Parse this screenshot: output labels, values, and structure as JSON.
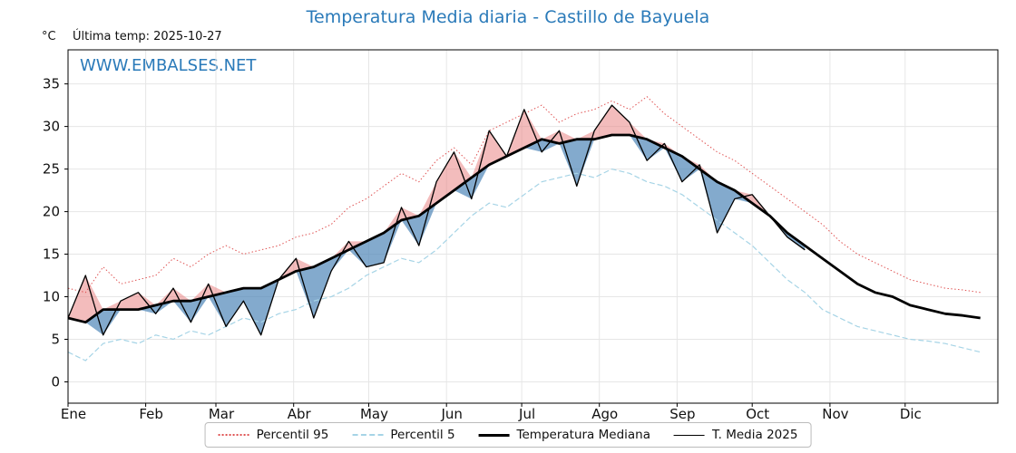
{
  "title": "Temperatura Media diaria - Castillo de Bayuela",
  "unit_label": "°C",
  "last_temp_label": "Última temp: 2025-10-27",
  "watermark": "WWW.EMBALSES.NET",
  "colors": {
    "title_blue": "#2a7ab9",
    "p95_red": "#e05555",
    "p5_blue": "#a6d4e6",
    "median_black": "#000000",
    "t2025_black": "#000000",
    "fill_above": "#e87a7a",
    "fill_below": "#4f86b8",
    "grid": "#e6e6e6",
    "axis": "#000000"
  },
  "legend": [
    {
      "label": "Percentil 95"
    },
    {
      "label": "Percentil 5"
    },
    {
      "label": "Temperatura Mediana"
    },
    {
      "label": "T. Media 2025"
    }
  ],
  "chart_data": {
    "type": "line",
    "title": "Temperatura Media diaria - Castillo de Bayuela",
    "xlabel": "",
    "ylabel": "°C",
    "ylim": [
      -2.5,
      39
    ],
    "yticks": [
      0,
      5,
      10,
      15,
      20,
      25,
      30,
      35
    ],
    "grid": true,
    "legend_position": "bottom",
    "month_labels": [
      "Ene",
      "Feb",
      "Mar",
      "Abr",
      "May",
      "Jun",
      "Jul",
      "Ago",
      "Sep",
      "Oct",
      "Nov",
      "Dic"
    ],
    "month_start_days": [
      1,
      32,
      60,
      91,
      121,
      152,
      182,
      213,
      244,
      274,
      305,
      335
    ],
    "x_days": [
      1,
      8,
      15,
      22,
      29,
      36,
      43,
      50,
      57,
      64,
      71,
      78,
      85,
      92,
      99,
      106,
      113,
      120,
      127,
      134,
      141,
      148,
      155,
      162,
      169,
      176,
      183,
      190,
      197,
      204,
      211,
      218,
      225,
      232,
      239,
      246,
      253,
      260,
      267,
      274,
      281,
      288,
      295,
      302,
      309,
      316,
      323,
      330,
      337,
      344,
      351,
      358,
      365
    ],
    "series": [
      {
        "name": "Percentil 95",
        "values": [
          11,
          10.5,
          13.5,
          11.5,
          12,
          12.5,
          14.5,
          13.5,
          15,
          16,
          15,
          15.5,
          16,
          17,
          17.5,
          18.5,
          20.5,
          21.5,
          23,
          24.5,
          23.5,
          26,
          27.5,
          25.5,
          29.5,
          30.5,
          31.5,
          32.5,
          30.5,
          31.5,
          32,
          33,
          32,
          33.5,
          31.5,
          30,
          28.5,
          27,
          26,
          24.5,
          23,
          21.5,
          20,
          18.5,
          16.5,
          15,
          14,
          13,
          12,
          11.5,
          11,
          10.8,
          10.5
        ]
      },
      {
        "name": "Percentil 5",
        "values": [
          3.5,
          2.5,
          4.5,
          5,
          4.5,
          5.5,
          5,
          6,
          5.5,
          6.5,
          7.5,
          7,
          8,
          8.5,
          9.5,
          10,
          11,
          12.5,
          13.5,
          14.5,
          14,
          15.5,
          17.5,
          19.5,
          21,
          20.5,
          22,
          23.5,
          24,
          24.5,
          24,
          25,
          24.5,
          23.5,
          23,
          22,
          20.5,
          19,
          17.5,
          16,
          14,
          12,
          10.5,
          8.5,
          7.5,
          6.5,
          6,
          5.5,
          5,
          4.8,
          4.5,
          4,
          3.5
        ]
      },
      {
        "name": "Temperatura Mediana",
        "values": [
          7.5,
          7,
          8.5,
          8.5,
          8.5,
          9,
          9.5,
          9.5,
          10,
          10.5,
          11,
          11,
          12,
          13,
          13.5,
          14.5,
          15.5,
          16.5,
          17.5,
          19,
          19.5,
          21,
          22.5,
          24,
          25.5,
          26.5,
          27.5,
          28.5,
          28,
          28.5,
          28.5,
          29,
          29,
          28.5,
          27.5,
          26.5,
          25,
          23.5,
          22.5,
          21,
          19.5,
          17.5,
          16,
          14.5,
          13,
          11.5,
          10.5,
          10,
          9,
          8.5,
          8,
          7.8,
          7.5
        ]
      },
      {
        "name": "T. Media 2025",
        "values": [
          7.5,
          12.5,
          5.5,
          9.5,
          10.5,
          8,
          11,
          7,
          11.5,
          6.5,
          9.5,
          5.5,
          12,
          14.5,
          7.5,
          13,
          16.5,
          13.5,
          14,
          20.5,
          16,
          23.5,
          27,
          21.5,
          29.5,
          26.5,
          32,
          27,
          29.5,
          23,
          29.5,
          32.5,
          30.5,
          26,
          28,
          23.5,
          25.5,
          17.5,
          21.5,
          22,
          19.5,
          17,
          15.5,
          null,
          null,
          null,
          null,
          null,
          null,
          null,
          null,
          null,
          null
        ]
      }
    ]
  }
}
